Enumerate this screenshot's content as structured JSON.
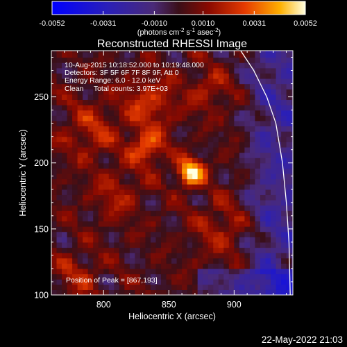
{
  "chart_data": {
    "type": "heatmap",
    "title": "Reconstructed RHESSI Image",
    "xlabel": "Heliocentric X (arcsec)",
    "ylabel": "Heliocentric Y (arcsec)",
    "xlim": [
      760,
      945
    ],
    "ylim": [
      100,
      285
    ],
    "xticks": [
      800,
      850,
      900
    ],
    "yticks": [
      100,
      150,
      200,
      250
    ],
    "xtick_labels": [
      "800",
      "850",
      "900"
    ],
    "ytick_labels": [
      "100",
      "150",
      "200",
      "250"
    ],
    "colorbar": {
      "range": [
        -0.0052,
        0.0052
      ],
      "ticks": [
        -0.0052,
        -0.0031,
        -0.001,
        0.001,
        0.0031,
        0.0052
      ],
      "tick_labels": [
        "-0.0052",
        "-0.0031",
        "-0.0010",
        "0.0010",
        "0.0031",
        "0.0052"
      ],
      "units_label": "(photons cm-2 s-1 asec-2)",
      "units_main": "(photons cm",
      "units_sup1": "-2",
      "units_mid": " s",
      "units_sup2": "-1",
      "units_mid2": " asec",
      "units_sup3": "-2",
      "units_end": ")"
    },
    "annotations": [
      "10-Aug-2015 10:18:52.000 to 10:19:48.000",
      "Detectors: 3F 5F 6F 7F 8F 9F, Att 0",
      "Energy Range: 6.0 - 12.0 keV",
      "Clean     Total counts: 3.97E+03"
    ],
    "peak_label": "Position of Peak = [867,193]",
    "peak": {
      "x": 867,
      "y": 193
    },
    "timestamp": "22-May-2022 21:03",
    "sources": [
      {
        "x": 867,
        "y": 193,
        "amp": 1.0,
        "sigma": 7
      },
      {
        "x": 833,
        "y": 212,
        "amp": 0.55,
        "sigma": 9
      },
      {
        "x": 835,
        "y": 245,
        "amp": 0.4,
        "sigma": 14
      },
      {
        "x": 880,
        "y": 255,
        "amp": 0.3,
        "sigma": 10
      },
      {
        "x": 790,
        "y": 225,
        "amp": 0.3,
        "sigma": 15
      },
      {
        "x": 810,
        "y": 175,
        "amp": 0.25,
        "sigma": 14
      },
      {
        "x": 890,
        "y": 150,
        "amp": 0.25,
        "sigma": 15
      },
      {
        "x": 780,
        "y": 115,
        "amp": 0.25,
        "sigma": 12
      }
    ],
    "limb_curve": [
      [
        905,
        285
      ],
      [
        915,
        270
      ],
      [
        925,
        250
      ],
      [
        932,
        230
      ],
      [
        937,
        200
      ],
      [
        940,
        170
      ],
      [
        942,
        140
      ],
      [
        943,
        100
      ]
    ]
  }
}
